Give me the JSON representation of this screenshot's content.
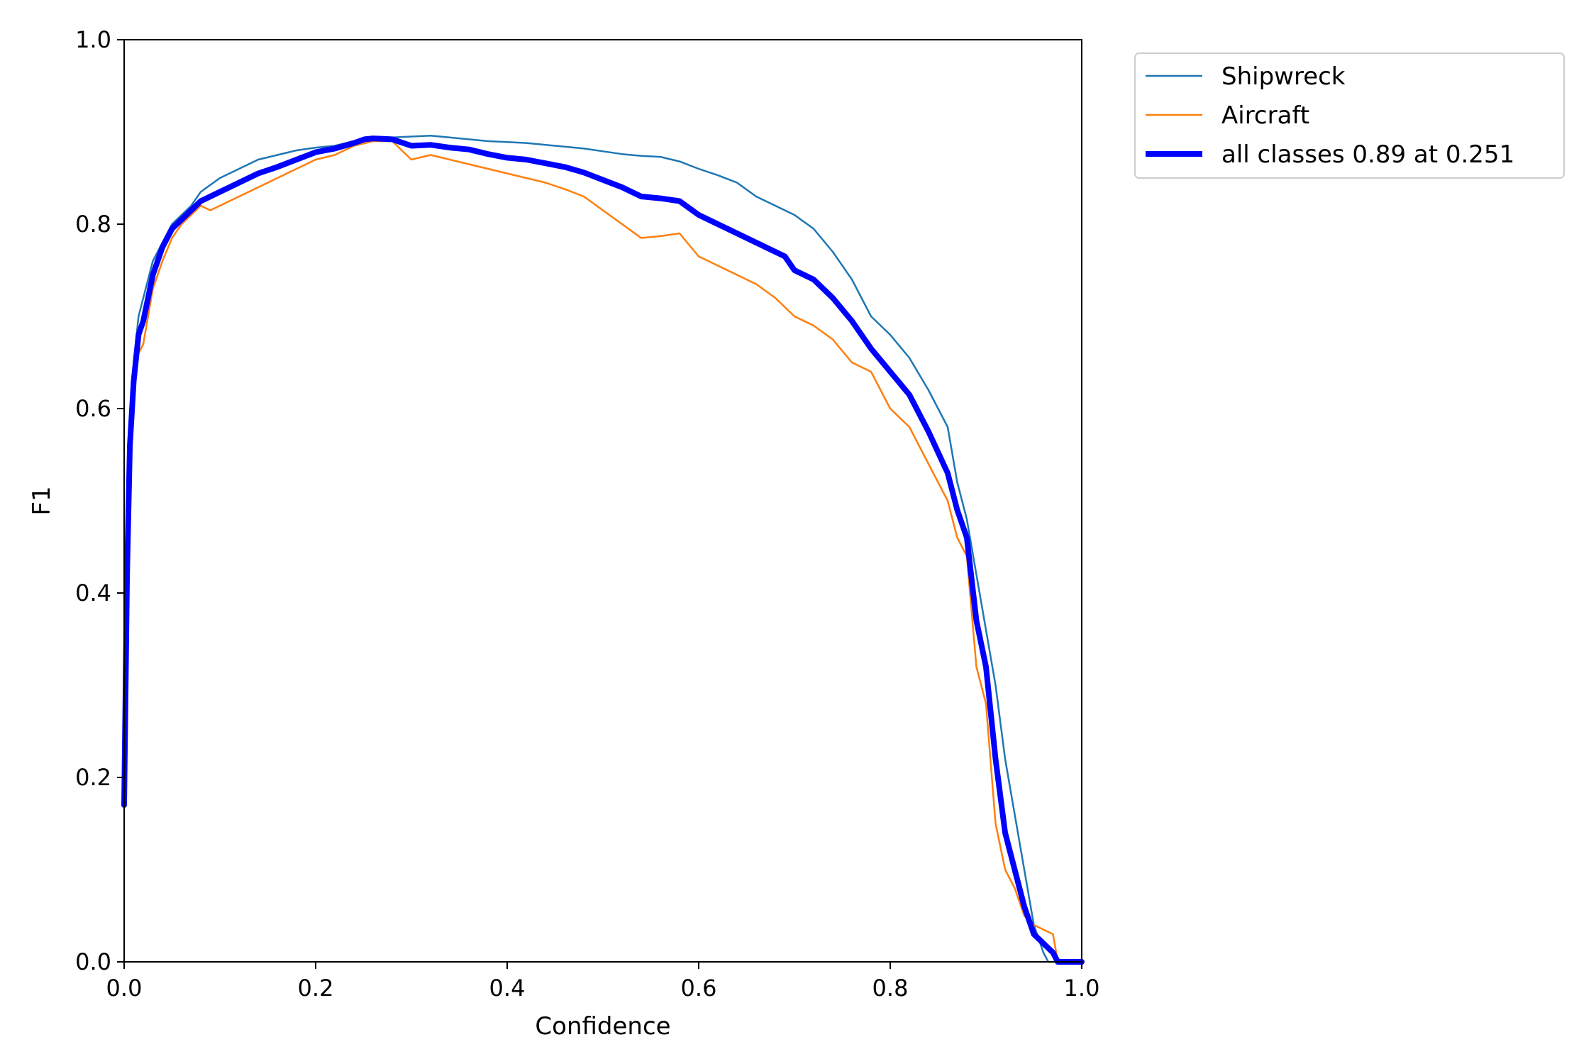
{
  "chart_data": {
    "type": "line",
    "title": "",
    "xlabel": "Confidence",
    "ylabel": "F1",
    "xlim": [
      0.0,
      1.0
    ],
    "ylim": [
      0.0,
      1.0
    ],
    "xticks": [
      "0.0",
      "0.2",
      "0.4",
      "0.6",
      "0.8",
      "1.0"
    ],
    "yticks": [
      "0.0",
      "0.2",
      "0.4",
      "0.6",
      "0.8",
      "1.0"
    ],
    "grid": false,
    "legend_position": "outside-top-right",
    "series": [
      {
        "name": "Shipwreck",
        "color": "#1f77b4",
        "line_width": "thin",
        "points": [
          [
            0.0,
            0.2
          ],
          [
            0.003,
            0.45
          ],
          [
            0.006,
            0.58
          ],
          [
            0.01,
            0.65
          ],
          [
            0.015,
            0.7
          ],
          [
            0.02,
            0.72
          ],
          [
            0.03,
            0.76
          ],
          [
            0.04,
            0.78
          ],
          [
            0.05,
            0.8
          ],
          [
            0.06,
            0.81
          ],
          [
            0.07,
            0.82
          ],
          [
            0.08,
            0.835
          ],
          [
            0.1,
            0.85
          ],
          [
            0.12,
            0.86
          ],
          [
            0.14,
            0.87
          ],
          [
            0.16,
            0.875
          ],
          [
            0.18,
            0.88
          ],
          [
            0.2,
            0.883
          ],
          [
            0.22,
            0.885
          ],
          [
            0.24,
            0.89
          ],
          [
            0.26,
            0.892
          ],
          [
            0.28,
            0.894
          ],
          [
            0.3,
            0.895
          ],
          [
            0.32,
            0.896
          ],
          [
            0.34,
            0.894
          ],
          [
            0.36,
            0.892
          ],
          [
            0.38,
            0.89
          ],
          [
            0.4,
            0.889
          ],
          [
            0.42,
            0.888
          ],
          [
            0.44,
            0.886
          ],
          [
            0.46,
            0.884
          ],
          [
            0.48,
            0.882
          ],
          [
            0.5,
            0.879
          ],
          [
            0.52,
            0.876
          ],
          [
            0.54,
            0.874
          ],
          [
            0.56,
            0.873
          ],
          [
            0.58,
            0.868
          ],
          [
            0.6,
            0.86
          ],
          [
            0.62,
            0.853
          ],
          [
            0.64,
            0.845
          ],
          [
            0.66,
            0.83
          ],
          [
            0.68,
            0.82
          ],
          [
            0.7,
            0.81
          ],
          [
            0.72,
            0.795
          ],
          [
            0.74,
            0.77
          ],
          [
            0.76,
            0.74
          ],
          [
            0.78,
            0.7
          ],
          [
            0.8,
            0.68
          ],
          [
            0.82,
            0.655
          ],
          [
            0.84,
            0.62
          ],
          [
            0.86,
            0.58
          ],
          [
            0.87,
            0.52
          ],
          [
            0.88,
            0.48
          ],
          [
            0.89,
            0.42
          ],
          [
            0.9,
            0.36
          ],
          [
            0.91,
            0.3
          ],
          [
            0.92,
            0.22
          ],
          [
            0.93,
            0.16
          ],
          [
            0.94,
            0.1
          ],
          [
            0.95,
            0.04
          ],
          [
            0.96,
            0.01
          ],
          [
            0.965,
            0.0
          ],
          [
            1.0,
            0.0
          ]
        ]
      },
      {
        "name": "Aircraft",
        "color": "#ff7f0e",
        "line_width": "thin",
        "points": [
          [
            0.0,
            0.17
          ],
          [
            0.003,
            0.4
          ],
          [
            0.006,
            0.55
          ],
          [
            0.01,
            0.62
          ],
          [
            0.015,
            0.66
          ],
          [
            0.02,
            0.67
          ],
          [
            0.03,
            0.73
          ],
          [
            0.04,
            0.76
          ],
          [
            0.05,
            0.785
          ],
          [
            0.06,
            0.8
          ],
          [
            0.07,
            0.81
          ],
          [
            0.08,
            0.82
          ],
          [
            0.09,
            0.815
          ],
          [
            0.1,
            0.82
          ],
          [
            0.12,
            0.83
          ],
          [
            0.14,
            0.84
          ],
          [
            0.16,
            0.85
          ],
          [
            0.18,
            0.86
          ],
          [
            0.2,
            0.87
          ],
          [
            0.22,
            0.875
          ],
          [
            0.24,
            0.885
          ],
          [
            0.26,
            0.89
          ],
          [
            0.28,
            0.89
          ],
          [
            0.3,
            0.87
          ],
          [
            0.32,
            0.875
          ],
          [
            0.34,
            0.87
          ],
          [
            0.36,
            0.865
          ],
          [
            0.38,
            0.86
          ],
          [
            0.4,
            0.855
          ],
          [
            0.42,
            0.85
          ],
          [
            0.44,
            0.845
          ],
          [
            0.46,
            0.838
          ],
          [
            0.48,
            0.83
          ],
          [
            0.5,
            0.815
          ],
          [
            0.52,
            0.8
          ],
          [
            0.54,
            0.785
          ],
          [
            0.56,
            0.787
          ],
          [
            0.58,
            0.79
          ],
          [
            0.6,
            0.765
          ],
          [
            0.62,
            0.755
          ],
          [
            0.64,
            0.745
          ],
          [
            0.66,
            0.735
          ],
          [
            0.68,
            0.72
          ],
          [
            0.7,
            0.7
          ],
          [
            0.72,
            0.69
          ],
          [
            0.74,
            0.675
          ],
          [
            0.76,
            0.65
          ],
          [
            0.78,
            0.64
          ],
          [
            0.8,
            0.6
          ],
          [
            0.82,
            0.58
          ],
          [
            0.84,
            0.54
          ],
          [
            0.86,
            0.5
          ],
          [
            0.87,
            0.46
          ],
          [
            0.88,
            0.44
          ],
          [
            0.89,
            0.32
          ],
          [
            0.9,
            0.28
          ],
          [
            0.91,
            0.15
          ],
          [
            0.92,
            0.1
          ],
          [
            0.93,
            0.08
          ],
          [
            0.94,
            0.05
          ],
          [
            0.95,
            0.04
          ],
          [
            0.96,
            0.035
          ],
          [
            0.97,
            0.03
          ],
          [
            0.975,
            0.0
          ],
          [
            1.0,
            0.0
          ]
        ]
      },
      {
        "name": "all classes 0.89 at 0.251",
        "color": "#0000ff",
        "line_width": "thick",
        "points": [
          [
            0.0,
            0.17
          ],
          [
            0.003,
            0.42
          ],
          [
            0.006,
            0.56
          ],
          [
            0.01,
            0.63
          ],
          [
            0.015,
            0.68
          ],
          [
            0.02,
            0.695
          ],
          [
            0.03,
            0.745
          ],
          [
            0.04,
            0.775
          ],
          [
            0.05,
            0.795
          ],
          [
            0.06,
            0.805
          ],
          [
            0.07,
            0.815
          ],
          [
            0.08,
            0.825
          ],
          [
            0.1,
            0.835
          ],
          [
            0.12,
            0.845
          ],
          [
            0.14,
            0.855
          ],
          [
            0.16,
            0.862
          ],
          [
            0.18,
            0.87
          ],
          [
            0.2,
            0.878
          ],
          [
            0.22,
            0.882
          ],
          [
            0.24,
            0.888
          ],
          [
            0.251,
            0.892
          ],
          [
            0.26,
            0.893
          ],
          [
            0.28,
            0.892
          ],
          [
            0.3,
            0.885
          ],
          [
            0.32,
            0.886
          ],
          [
            0.34,
            0.883
          ],
          [
            0.36,
            0.881
          ],
          [
            0.38,
            0.876
          ],
          [
            0.4,
            0.872
          ],
          [
            0.42,
            0.87
          ],
          [
            0.44,
            0.866
          ],
          [
            0.46,
            0.862
          ],
          [
            0.48,
            0.856
          ],
          [
            0.5,
            0.848
          ],
          [
            0.52,
            0.84
          ],
          [
            0.54,
            0.83
          ],
          [
            0.56,
            0.828
          ],
          [
            0.58,
            0.825
          ],
          [
            0.6,
            0.81
          ],
          [
            0.62,
            0.8
          ],
          [
            0.64,
            0.79
          ],
          [
            0.66,
            0.78
          ],
          [
            0.68,
            0.77
          ],
          [
            0.69,
            0.765
          ],
          [
            0.7,
            0.75
          ],
          [
            0.72,
            0.74
          ],
          [
            0.74,
            0.72
          ],
          [
            0.76,
            0.695
          ],
          [
            0.78,
            0.665
          ],
          [
            0.8,
            0.64
          ],
          [
            0.82,
            0.615
          ],
          [
            0.84,
            0.575
          ],
          [
            0.86,
            0.53
          ],
          [
            0.87,
            0.49
          ],
          [
            0.88,
            0.46
          ],
          [
            0.89,
            0.37
          ],
          [
            0.9,
            0.32
          ],
          [
            0.91,
            0.22
          ],
          [
            0.92,
            0.14
          ],
          [
            0.93,
            0.1
          ],
          [
            0.94,
            0.06
          ],
          [
            0.95,
            0.03
          ],
          [
            0.96,
            0.02
          ],
          [
            0.97,
            0.01
          ],
          [
            0.975,
            0.0
          ],
          [
            1.0,
            0.0
          ]
        ]
      }
    ]
  }
}
